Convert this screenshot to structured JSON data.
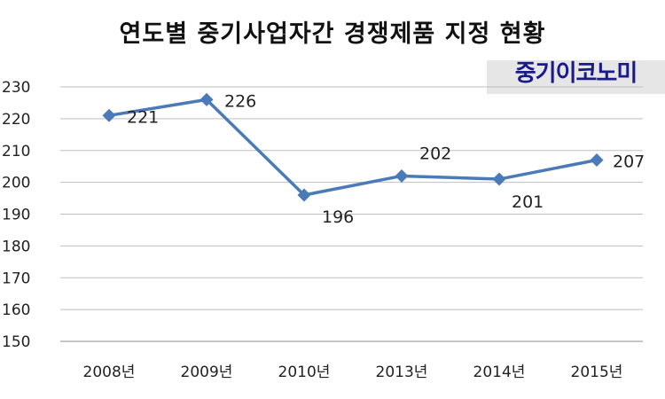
{
  "chart_data": {
    "type": "line",
    "title": "연도별 중기사업자간 경쟁제품 지정 현황",
    "categories": [
      "2008년",
      "2009년",
      "2010년",
      "2013년",
      "2014년",
      "2015년"
    ],
    "values": [
      221,
      226,
      196,
      202,
      201,
      207
    ],
    "data_labels": [
      "221",
      "226",
      "196",
      "202",
      "201",
      "207"
    ],
    "y_ticks": [
      150,
      160,
      170,
      180,
      190,
      200,
      210,
      220,
      230
    ],
    "ylim": [
      150,
      230
    ],
    "grid": true,
    "marker": "diamond",
    "line_color": "#4a7ab8",
    "legend": "none"
  },
  "watermark": "중기이코노미"
}
